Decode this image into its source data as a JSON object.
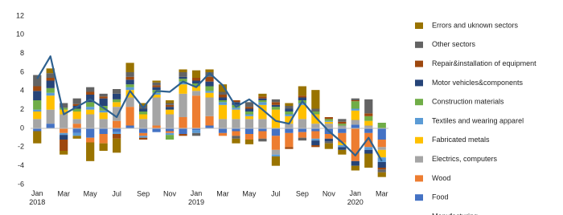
{
  "chart_data": {
    "type": "bar",
    "stacked": true,
    "categories": [
      "Jan 2018",
      null,
      "Mar",
      null,
      "May",
      null,
      "Jul",
      null,
      "Sep",
      null,
      "Nov",
      null,
      "Jan 2019",
      null,
      "Mar",
      null,
      "May",
      null,
      "Jul",
      null,
      "Sep",
      null,
      "Nov",
      null,
      "Jan 2020",
      null,
      "Mar"
    ],
    "ylim": [
      -6,
      12
    ],
    "yticks": [
      -6,
      -4,
      -2,
      0,
      2,
      4,
      6,
      8,
      10,
      12
    ],
    "series": [
      {
        "name": "Food",
        "color": "#4472c4",
        "values": [
          -0.3,
          0.5,
          0,
          -0.5,
          -1,
          -0.6,
          -0.4,
          0.3,
          -0.5,
          -0.4,
          -0.3,
          -0.6,
          -0.2,
          0.3,
          -0.5,
          -0.3,
          -0.6,
          -0.3,
          -0.8,
          -0.5,
          -0.4,
          -0.3,
          -0.6,
          -0.5,
          0.4,
          -0.5,
          -1.2
        ]
      },
      {
        "name": "Wood",
        "color": "#ed7d31",
        "values": [
          0,
          0,
          -0.5,
          0.5,
          -0.5,
          -1,
          0.8,
          2,
          -0.3,
          0.3,
          -0.2,
          1.2,
          3.5,
          1,
          -0.3,
          -0.5,
          -0.6,
          -0.8,
          -1.5,
          -1.5,
          -0.6,
          -0.8,
          -0.5,
          -1,
          -3.5,
          -1.5,
          -0.8
        ]
      },
      {
        "name": "Electrics, computers",
        "color": "#a5a5a5",
        "values": [
          1,
          1.5,
          1.5,
          0.5,
          1.5,
          1,
          1.5,
          1,
          1,
          3,
          1.5,
          2.5,
          0.5,
          2,
          1,
          1,
          1,
          1,
          -0.5,
          0.5,
          1,
          0.5,
          0.5,
          0.3,
          0.5,
          0.3,
          -0.3
        ]
      },
      {
        "name": "Fabricated metals",
        "color": "#ffc000",
        "values": [
          0.8,
          1.5,
          0.5,
          0.8,
          0.5,
          0.7,
          0.5,
          0.8,
          0.5,
          0.3,
          0.5,
          1,
          0.5,
          0.5,
          1.5,
          1,
          0.3,
          1.5,
          2,
          0.8,
          1.5,
          1,
          0.2,
          -0.3,
          1,
          0.5,
          -0.8
        ]
      },
      {
        "name": "Textiles and wearing apparel",
        "color": "#5b9bd5",
        "values": [
          0.2,
          0.3,
          -0.2,
          -0.3,
          0.3,
          0.2,
          -0.2,
          0.3,
          -0.2,
          0.2,
          -0.2,
          0.3,
          -0.3,
          0.2,
          0.3,
          0.2,
          0.2,
          0.3,
          -0.2,
          0.2,
          0.2,
          -0.2,
          0.1,
          -0.2,
          0.2,
          -0.3,
          -0.5
        ]
      },
      {
        "name": "Construction materials",
        "color": "#70ad47",
        "values": [
          1,
          0.5,
          0.2,
          0.3,
          0.5,
          0.5,
          0.3,
          0.3,
          0.3,
          0.3,
          -0.5,
          0.3,
          0.3,
          0.5,
          0.2,
          0.3,
          0.3,
          0.2,
          0.3,
          0.3,
          0.3,
          0.3,
          0.2,
          0.2,
          0.8,
          0.5,
          0.6
        ]
      },
      {
        "name": "Motor vehicles&components",
        "color": "#264478",
        "values": [
          1,
          0.8,
          -0.5,
          0.3,
          0.8,
          0.8,
          0.6,
          0.5,
          0.3,
          0.3,
          0.3,
          0.2,
          0.3,
          0.5,
          0.3,
          0.3,
          0.3,
          0.2,
          0.2,
          0.3,
          0.3,
          -0.5,
          -0.3,
          -0.3,
          -0.5,
          -0.4,
          -0.6
        ]
      },
      {
        "name": "Repair&installation of equipment",
        "color": "#9e480e",
        "values": [
          0.5,
          0.3,
          -1.2,
          0.2,
          0.3,
          0.2,
          -0.5,
          0.3,
          -0.2,
          0.2,
          0.2,
          -0.2,
          0.3,
          0.5,
          0.3,
          0.2,
          0.2,
          0.2,
          0.3,
          -0.2,
          0.2,
          -0.2,
          0.2,
          0.2,
          0.1,
          0.3,
          -0.2
        ]
      },
      {
        "name": "Other sectors",
        "color": "#636363",
        "values": [
          1.2,
          0.5,
          0.5,
          0.6,
          0.5,
          0.3,
          0.5,
          0.5,
          0.3,
          0.3,
          0.2,
          0.5,
          -0.3,
          0.5,
          0.3,
          -0.3,
          0.5,
          -0.3,
          0.3,
          0.3,
          -0.3,
          0.3,
          -0.2,
          0.3,
          0.2,
          1.5,
          -0.3
        ]
      },
      {
        "name": "Errors and uknown sectors",
        "color": "#997300",
        "values": [
          -1.3,
          0.5,
          -0.4,
          -0.3,
          -2,
          -0.8,
          -1.5,
          1,
          0.3,
          0.2,
          0.3,
          0.3,
          0.8,
          0.3,
          0.8,
          -0.5,
          -0.5,
          0.3,
          -1,
          0.3,
          1,
          2,
          -0.6,
          -0.5,
          -0.5,
          -1.5,
          -0.5
        ]
      },
      {
        "name": "Manufacturing",
        "type": "line",
        "color": "#2e6190",
        "values": [
          5.3,
          7.7,
          1.5,
          2.3,
          3.1,
          2.2,
          1.2,
          4.0,
          2.2,
          4.0,
          3.9,
          5.0,
          4.4,
          5.9,
          4.6,
          2.3,
          3.1,
          2.0,
          0.8,
          0.5,
          2.9,
          1.2,
          -0.3,
          -1.5,
          -2.9,
          -1.0,
          -3.5
        ]
      }
    ]
  }
}
